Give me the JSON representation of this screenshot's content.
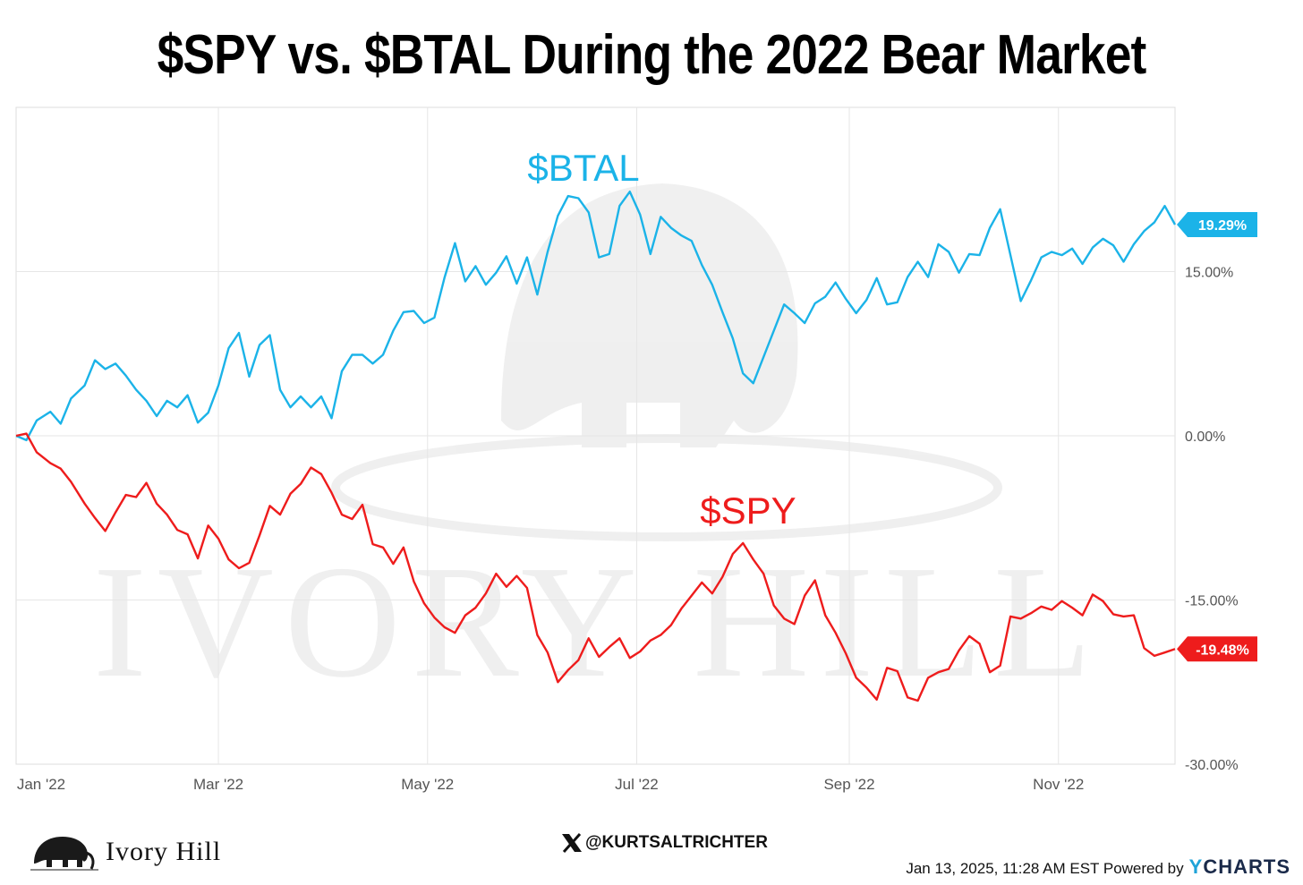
{
  "colors": {
    "btal": "#1bb3e8",
    "spy": "#ee1c1c",
    "grid": "#e6e6e6",
    "axis_text": "#555555"
  },
  "chart_data": {
    "type": "line",
    "title": "$SPY vs. $BTAL During the 2022 Bear Market",
    "xlabel": "",
    "ylabel": "",
    "x_ticks": [
      "Jan '22",
      "Mar '22",
      "May '22",
      "Jul '22",
      "Sep '22",
      "Nov '22"
    ],
    "y_ticks": [
      "15.00%",
      "0.00%",
      "-15.00%",
      "-30.00%"
    ],
    "y_tick_values": [
      15,
      0,
      -15,
      -30
    ],
    "ylim": [
      -30,
      30
    ],
    "grid": true,
    "series": [
      {
        "name": "$BTAL",
        "label": "$BTAL",
        "end_label": "19.29%",
        "end_value": 19.29,
        "points": [
          [
            0,
            0
          ],
          [
            3,
            -0.4
          ],
          [
            6,
            1.4
          ],
          [
            10,
            2.2
          ],
          [
            13,
            1.1
          ],
          [
            16,
            3.4
          ],
          [
            20,
            4.6
          ],
          [
            23,
            6.9
          ],
          [
            26,
            6.1
          ],
          [
            29,
            6.6
          ],
          [
            32,
            5.5
          ],
          [
            35,
            4.2
          ],
          [
            38,
            3.2
          ],
          [
            41,
            1.8
          ],
          [
            44,
            3.2
          ],
          [
            47,
            2.6
          ],
          [
            50,
            3.7
          ],
          [
            53,
            1.2
          ],
          [
            56,
            2.1
          ],
          [
            59,
            4.6
          ],
          [
            62,
            8.0
          ],
          [
            65,
            9.4
          ],
          [
            68,
            5.4
          ],
          [
            71,
            8.3
          ],
          [
            74,
            9.2
          ],
          [
            77,
            4.2
          ],
          [
            80,
            2.6
          ],
          [
            83,
            3.6
          ],
          [
            86,
            2.6
          ],
          [
            89,
            3.6
          ],
          [
            92,
            1.6
          ],
          [
            95,
            5.9
          ],
          [
            98,
            7.4
          ],
          [
            101,
            7.4
          ],
          [
            104,
            6.6
          ],
          [
            107,
            7.4
          ],
          [
            110,
            9.6
          ],
          [
            113,
            11.3
          ],
          [
            116,
            11.4
          ],
          [
            119,
            10.3
          ],
          [
            122,
            10.8
          ],
          [
            125,
            14.5
          ],
          [
            128,
            17.6
          ],
          [
            131,
            14.1
          ],
          [
            134,
            15.5
          ],
          [
            137,
            13.8
          ],
          [
            140,
            14.9
          ],
          [
            143,
            16.4
          ],
          [
            146,
            13.9
          ],
          [
            149,
            16.3
          ],
          [
            152,
            12.9
          ],
          [
            155,
            16.8
          ],
          [
            158,
            20.1
          ],
          [
            161,
            21.9
          ],
          [
            164,
            21.7
          ],
          [
            167,
            20.4
          ],
          [
            170,
            16.3
          ],
          [
            173,
            16.6
          ],
          [
            176,
            21.0
          ],
          [
            179,
            22.3
          ],
          [
            182,
            20.2
          ],
          [
            185,
            16.6
          ],
          [
            188,
            20.0
          ],
          [
            191,
            19.0
          ],
          [
            194,
            18.3
          ],
          [
            197,
            17.8
          ],
          [
            200,
            15.6
          ],
          [
            203,
            13.8
          ],
          [
            206,
            11.3
          ],
          [
            209,
            8.9
          ],
          [
            212,
            5.7
          ],
          [
            215,
            4.8
          ],
          [
            218,
            7.2
          ],
          [
            221,
            9.6
          ],
          [
            224,
            12.0
          ],
          [
            227,
            11.2
          ],
          [
            230,
            10.3
          ],
          [
            233,
            12.1
          ],
          [
            236,
            12.7
          ],
          [
            239,
            14.0
          ],
          [
            242,
            12.5
          ],
          [
            245,
            11.2
          ],
          [
            248,
            12.4
          ],
          [
            251,
            14.4
          ],
          [
            254,
            12.0
          ],
          [
            257,
            12.2
          ],
          [
            260,
            14.5
          ],
          [
            263,
            15.9
          ],
          [
            266,
            14.5
          ],
          [
            269,
            17.5
          ],
          [
            272,
            16.8
          ],
          [
            275,
            14.9
          ],
          [
            278,
            16.6
          ],
          [
            281,
            16.5
          ],
          [
            284,
            19.0
          ],
          [
            287,
            20.7
          ],
          [
            290,
            16.5
          ],
          [
            293,
            12.3
          ],
          [
            296,
            14.2
          ],
          [
            299,
            16.3
          ],
          [
            302,
            16.8
          ],
          [
            305,
            16.5
          ],
          [
            308,
            17.1
          ],
          [
            311,
            15.7
          ],
          [
            314,
            17.2
          ],
          [
            317,
            18.0
          ],
          [
            320,
            17.4
          ],
          [
            323,
            15.9
          ],
          [
            326,
            17.5
          ],
          [
            329,
            18.7
          ],
          [
            332,
            19.5
          ],
          [
            335,
            21.0
          ],
          [
            338,
            19.29
          ]
        ]
      },
      {
        "name": "$SPY",
        "label": "$SPY",
        "end_label": "-19.48%",
        "end_value": -19.48,
        "points": [
          [
            0,
            0
          ],
          [
            3,
            0.2
          ],
          [
            6,
            -1.5
          ],
          [
            10,
            -2.5
          ],
          [
            13,
            -3.0
          ],
          [
            16,
            -4.2
          ],
          [
            20,
            -6.2
          ],
          [
            23,
            -7.5
          ],
          [
            26,
            -8.7
          ],
          [
            29,
            -7.0
          ],
          [
            32,
            -5.4
          ],
          [
            35,
            -5.6
          ],
          [
            38,
            -4.3
          ],
          [
            41,
            -6.2
          ],
          [
            44,
            -7.2
          ],
          [
            47,
            -8.6
          ],
          [
            50,
            -9.0
          ],
          [
            53,
            -11.2
          ],
          [
            56,
            -8.2
          ],
          [
            59,
            -9.4
          ],
          [
            62,
            -11.3
          ],
          [
            65,
            -12.1
          ],
          [
            68,
            -11.6
          ],
          [
            71,
            -9.1
          ],
          [
            74,
            -6.4
          ],
          [
            77,
            -7.2
          ],
          [
            80,
            -5.3
          ],
          [
            83,
            -4.4
          ],
          [
            86,
            -2.9
          ],
          [
            89,
            -3.5
          ],
          [
            92,
            -5.2
          ],
          [
            95,
            -7.2
          ],
          [
            98,
            -7.6
          ],
          [
            101,
            -6.3
          ],
          [
            104,
            -9.9
          ],
          [
            107,
            -10.2
          ],
          [
            110,
            -11.7
          ],
          [
            113,
            -10.2
          ],
          [
            116,
            -13.3
          ],
          [
            119,
            -15.3
          ],
          [
            122,
            -16.6
          ],
          [
            125,
            -17.5
          ],
          [
            128,
            -18.0
          ],
          [
            131,
            -16.4
          ],
          [
            134,
            -15.7
          ],
          [
            137,
            -14.4
          ],
          [
            140,
            -12.6
          ],
          [
            143,
            -13.8
          ],
          [
            146,
            -12.8
          ],
          [
            149,
            -13.9
          ],
          [
            152,
            -18.2
          ],
          [
            155,
            -19.8
          ],
          [
            158,
            -22.5
          ],
          [
            161,
            -21.4
          ],
          [
            164,
            -20.5
          ],
          [
            167,
            -18.5
          ],
          [
            170,
            -20.2
          ],
          [
            173,
            -19.3
          ],
          [
            176,
            -18.5
          ],
          [
            179,
            -20.3
          ],
          [
            182,
            -19.7
          ],
          [
            185,
            -18.7
          ],
          [
            188,
            -18.2
          ],
          [
            191,
            -17.3
          ],
          [
            194,
            -15.8
          ],
          [
            197,
            -14.6
          ],
          [
            200,
            -13.4
          ],
          [
            203,
            -14.4
          ],
          [
            206,
            -12.9
          ],
          [
            209,
            -10.8
          ],
          [
            212,
            -9.8
          ],
          [
            215,
            -11.3
          ],
          [
            218,
            -12.6
          ],
          [
            221,
            -15.5
          ],
          [
            224,
            -16.7
          ],
          [
            227,
            -17.2
          ],
          [
            230,
            -14.6
          ],
          [
            233,
            -13.2
          ],
          [
            236,
            -16.4
          ],
          [
            239,
            -18.0
          ],
          [
            242,
            -19.9
          ],
          [
            245,
            -22.1
          ],
          [
            248,
            -23.0
          ],
          [
            251,
            -24.1
          ],
          [
            254,
            -21.2
          ],
          [
            257,
            -21.5
          ],
          [
            260,
            -23.9
          ],
          [
            263,
            -24.2
          ],
          [
            266,
            -22.1
          ],
          [
            269,
            -21.6
          ],
          [
            272,
            -21.3
          ],
          [
            275,
            -19.6
          ],
          [
            278,
            -18.3
          ],
          [
            281,
            -19.0
          ],
          [
            284,
            -21.6
          ],
          [
            287,
            -21.0
          ],
          [
            290,
            -16.5
          ],
          [
            293,
            -16.7
          ],
          [
            296,
            -16.2
          ],
          [
            299,
            -15.6
          ],
          [
            302,
            -15.9
          ],
          [
            305,
            -15.1
          ],
          [
            308,
            -15.7
          ],
          [
            311,
            -16.4
          ],
          [
            314,
            -14.5
          ],
          [
            317,
            -15.1
          ],
          [
            320,
            -16.3
          ],
          [
            323,
            -16.5
          ],
          [
            326,
            -16.4
          ],
          [
            329,
            -19.4
          ],
          [
            332,
            -20.1
          ],
          [
            335,
            -19.8
          ],
          [
            338,
            -19.48
          ]
        ]
      }
    ],
    "watermark": "IVORY HILL"
  },
  "footer": {
    "brand": "Ivory Hill",
    "handle": "@KURTSALTRICHTER",
    "x_icon": "x-logo-icon",
    "timestamp": "Jan 13, 2025, 11:28 AM EST Powered by",
    "powered_brand_y": "Y",
    "powered_brand_rest": "CHARTS"
  }
}
